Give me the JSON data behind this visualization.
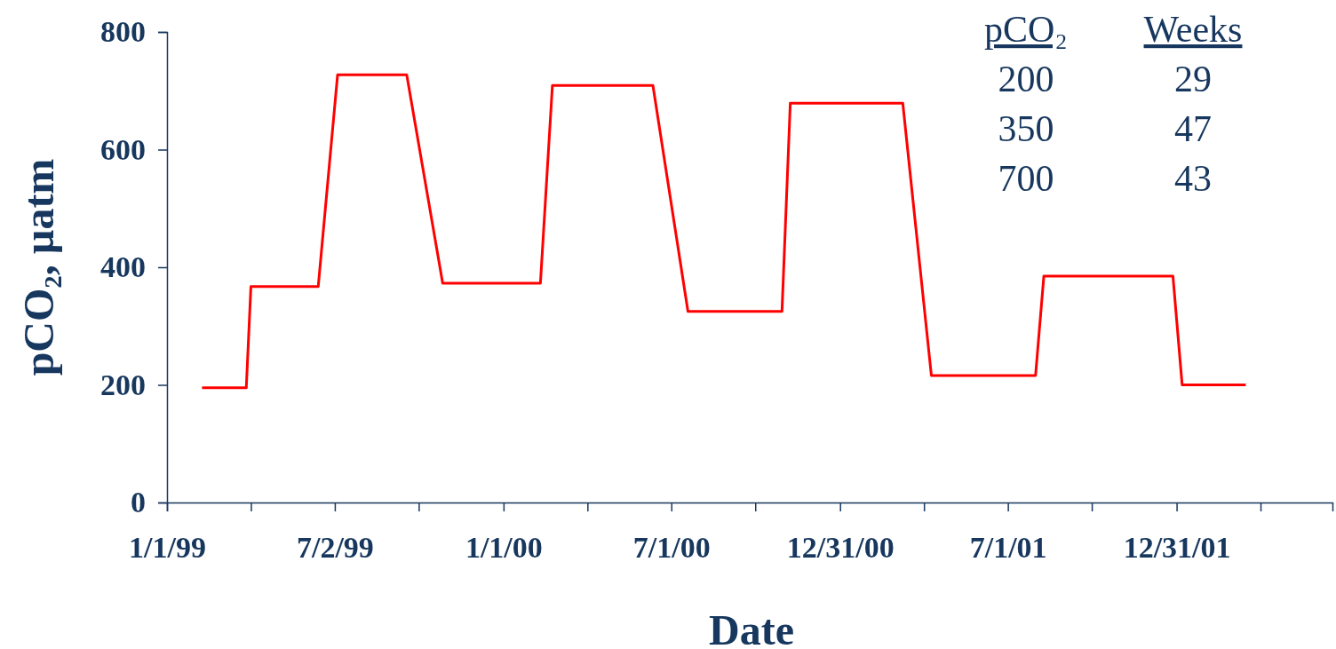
{
  "chart_data": {
    "type": "line",
    "xlabel": "Date",
    "ylabel": "pCO₂, µatm",
    "x": [
      "1999-02-08",
      "1999-03-28",
      "1999-04-02",
      "1999-06-14",
      "1999-07-05",
      "1999-09-18",
      "1999-10-27",
      "2000-02-10",
      "2000-02-23",
      "2000-06-11",
      "2000-07-19",
      "2000-10-29",
      "2000-11-07",
      "2001-03-09",
      "2001-04-09",
      "2001-07-31",
      "2001-08-09",
      "2001-12-27",
      "2002-01-06",
      "2002-03-16"
    ],
    "series": [
      {
        "color": "#ff0000",
        "values": [
          195,
          195,
          367,
          367,
          727,
          727,
          373,
          373,
          709,
          709,
          325,
          325,
          679,
          679,
          216,
          216,
          385,
          385,
          200,
          200
        ]
      }
    ],
    "xlim": [
      "1999-01-01",
      "2002-06-18"
    ],
    "xticks": [
      {
        "value": "1999-01-01",
        "label": "1/1/99"
      },
      {
        "value": "1999-04-02",
        "label": null
      },
      {
        "value": "1999-07-02",
        "label": "7/2/99"
      },
      {
        "value": "1999-10-01",
        "label": null
      },
      {
        "value": "2000-01-01",
        "label": "1/1/00"
      },
      {
        "value": "2000-04-01",
        "label": null
      },
      {
        "value": "2000-07-01",
        "label": "7/1/00"
      },
      {
        "value": "2000-09-30",
        "label": null
      },
      {
        "value": "2000-12-31",
        "label": "12/31/00"
      },
      {
        "value": "2001-04-01",
        "label": null
      },
      {
        "value": "2001-07-01",
        "label": "7/1/01"
      },
      {
        "value": "2001-09-30",
        "label": null
      },
      {
        "value": "2001-12-31",
        "label": "12/31/01"
      },
      {
        "value": "2002-04-01",
        "label": null
      }
    ],
    "ylim": [
      0,
      800
    ],
    "yticks": [
      0,
      200,
      400,
      600,
      800
    ],
    "annotations": [
      "pCO₂",
      "Weeks",
      "200",
      "29",
      "350",
      "47",
      "700",
      "43"
    ],
    "line_style": "solid",
    "marker": "none",
    "grid": false
  }
}
